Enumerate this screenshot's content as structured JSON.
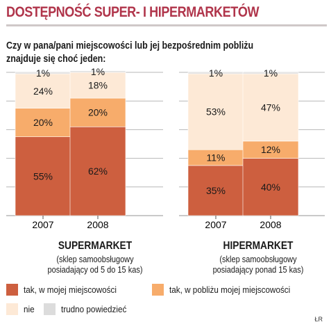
{
  "title": "DOSTĘPNOŚĆ SUPER- I HIPERMARKETÓW",
  "question_line1": "Czy w pana/pani miejscowości lub jej bezpośrednim pobliżu",
  "question_line2": "znajduje się choć jeden:",
  "colors": {
    "in_town": "#cd5f3f",
    "nearby": "#f7ac6b",
    "none": "#fde9d6",
    "dont_know": "#dcdcdc",
    "title": "#b0354b",
    "grid": "#b7b7b7"
  },
  "chart_data": {
    "type": "bar",
    "stacked": true,
    "unit": "%",
    "ylim": [
      0,
      100
    ],
    "grid": true,
    "legend_position": "bottom",
    "groups": [
      {
        "name": "SUPERMARKET",
        "sub1": "(sklep samoobsługowy",
        "sub2": "posiadający od 5 do 15 kas)",
        "categories": [
          "2007",
          "2008"
        ],
        "series": [
          {
            "name": "tak, w mojej miejscowości",
            "values": [
              55,
              62
            ]
          },
          {
            "name": "tak, w pobliżu mojej miejscowości",
            "values": [
              20,
              20
            ]
          },
          {
            "name": "nie",
            "values": [
              24,
              18
            ]
          },
          {
            "name": "trudno powiedzieć",
            "values": [
              1,
              1
            ]
          }
        ]
      },
      {
        "name": "HIPERMARKET",
        "sub1": "(sklep samoobsługowy",
        "sub2": "posiadający ponad 15 kas)",
        "categories": [
          "2007",
          "2008"
        ],
        "series": [
          {
            "name": "tak, w mojej miejscowości",
            "values": [
              35,
              40
            ]
          },
          {
            "name": "tak, w pobliżu mojej miejscowości",
            "values": [
              11,
              12
            ]
          },
          {
            "name": "nie",
            "values": [
              53,
              47
            ]
          },
          {
            "name": "trudno powiedzieć",
            "values": [
              1,
              1
            ]
          }
        ]
      }
    ]
  },
  "legend": [
    {
      "label": "tak, w mojej miejscowości",
      "color": "#cd5f3f"
    },
    {
      "label": "tak, w pobliżu mojej miejscowości",
      "color": "#f7ac6b"
    },
    {
      "label": "nie",
      "color": "#fde9d6"
    },
    {
      "label": "trudno powiedzieć",
      "color": "#dcdcdc"
    }
  ],
  "credit": "ŁR"
}
